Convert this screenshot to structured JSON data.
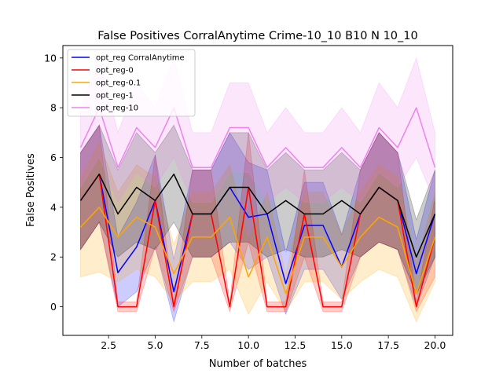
{
  "chart_data": {
    "type": "line",
    "title": "False Positives CorralAnytime Crime-10_10 B10 N 10_10",
    "xlabel": "Number of batches",
    "ylabel": "False Positives",
    "xlim": [
      0.05,
      20.95
    ],
    "ylim": [
      -1.15,
      10.5
    ],
    "xticks": [
      2.5,
      5.0,
      7.5,
      10.0,
      12.5,
      15.0,
      17.5,
      20.0
    ],
    "xtick_labels": [
      "2.5",
      "5.0",
      "7.5",
      "10.0",
      "12.5",
      "15.0",
      "17.5",
      "20.0"
    ],
    "yticks": [
      0,
      2,
      4,
      6,
      8,
      10
    ],
    "ytick_labels": [
      "0",
      "2",
      "4",
      "6",
      "8",
      "10"
    ],
    "grid": false,
    "legend_position": "top-left",
    "x": [
      1,
      2,
      3,
      4,
      5,
      6,
      7,
      8,
      9,
      10,
      11,
      12,
      13,
      14,
      15,
      16,
      17,
      18,
      19,
      20
    ],
    "series": [
      {
        "name": "opt_reg CorralAnytime",
        "color": "#0000ff",
        "mean": [
          4.27,
          5.33,
          1.37,
          2.4,
          4.27,
          0.6,
          3.73,
          3.73,
          4.8,
          3.6,
          3.73,
          0.93,
          3.27,
          3.27,
          1.6,
          3.73,
          4.8,
          4.27,
          1.33,
          3.73
        ],
        "lower": [
          2.3,
          3.4,
          0.0,
          0.6,
          2.4,
          -0.6,
          2.0,
          2.0,
          2.6,
          1.5,
          2.0,
          -0.3,
          1.5,
          1.5,
          0.3,
          2.0,
          2.6,
          2.3,
          0.0,
          2.0
        ],
        "upper": [
          6.2,
          7.3,
          2.8,
          4.2,
          6.1,
          1.9,
          5.5,
          5.5,
          7.0,
          5.8,
          5.5,
          2.2,
          5.0,
          5.0,
          2.9,
          5.5,
          7.0,
          6.2,
          2.7,
          5.5
        ]
      },
      {
        "name": "opt_reg-0",
        "color": "#ff0000",
        "mean": [
          4.27,
          5.33,
          0.0,
          0.0,
          4.27,
          0.0,
          3.73,
          3.73,
          0.0,
          4.8,
          0.0,
          0.0,
          3.73,
          0.0,
          0.0,
          3.73,
          4.8,
          4.27,
          0.0,
          2.8
        ],
        "lower": [
          2.3,
          3.4,
          -0.2,
          -0.2,
          2.4,
          -0.2,
          2.0,
          2.0,
          -0.2,
          2.6,
          -0.2,
          -0.2,
          2.0,
          -0.2,
          -0.2,
          2.0,
          2.6,
          2.3,
          -0.2,
          1.2
        ],
        "upper": [
          6.2,
          7.3,
          0.2,
          0.2,
          6.1,
          0.2,
          5.5,
          5.5,
          0.2,
          7.0,
          0.2,
          0.2,
          5.5,
          0.2,
          0.2,
          5.5,
          7.0,
          6.2,
          0.2,
          4.4
        ]
      },
      {
        "name": "opt_reg-0.1",
        "color": "#ffa500",
        "mean": [
          3.2,
          4.0,
          2.8,
          3.6,
          3.2,
          1.33,
          2.8,
          2.8,
          3.6,
          1.2,
          2.8,
          0.53,
          2.8,
          2.8,
          1.6,
          2.8,
          3.6,
          3.2,
          0.53,
          2.8
        ],
        "lower": [
          1.2,
          1.4,
          1.0,
          1.5,
          1.2,
          0.2,
          1.0,
          1.0,
          1.5,
          -0.3,
          1.0,
          -0.2,
          1.0,
          1.0,
          0.3,
          1.0,
          1.5,
          1.2,
          -0.6,
          1.0
        ],
        "upper": [
          5.2,
          6.6,
          4.6,
          5.7,
          5.2,
          2.5,
          4.6,
          4.6,
          5.7,
          2.7,
          4.6,
          1.3,
          4.6,
          4.6,
          2.9,
          4.6,
          5.7,
          5.2,
          1.7,
          4.6
        ]
      },
      {
        "name": "opt_reg-1",
        "color": "#000000",
        "mean": [
          4.27,
          5.33,
          3.73,
          4.8,
          4.27,
          5.33,
          3.73,
          3.73,
          4.8,
          4.8,
          3.73,
          4.27,
          3.73,
          3.73,
          4.27,
          3.73,
          4.8,
          4.27,
          2.0,
          3.73
        ],
        "lower": [
          2.3,
          3.4,
          2.0,
          2.6,
          2.3,
          3.4,
          2.0,
          2.0,
          2.6,
          2.6,
          2.0,
          2.3,
          2.0,
          2.0,
          2.3,
          2.0,
          2.6,
          2.3,
          0.5,
          2.0
        ],
        "upper": [
          6.2,
          7.3,
          5.5,
          7.0,
          6.2,
          7.3,
          5.5,
          5.5,
          7.0,
          7.0,
          5.5,
          6.2,
          5.5,
          5.5,
          6.2,
          5.5,
          7.0,
          6.2,
          3.5,
          5.5
        ]
      },
      {
        "name": "opt_reg-10",
        "color": "#ee82ee",
        "mean": [
          6.4,
          8.0,
          5.6,
          7.2,
          6.4,
          8.0,
          5.6,
          5.6,
          7.2,
          7.2,
          5.6,
          6.4,
          5.6,
          5.6,
          6.4,
          5.6,
          7.2,
          6.4,
          8.0,
          5.6
        ],
        "lower": [
          4.8,
          6.0,
          4.2,
          5.4,
          4.8,
          6.0,
          4.2,
          4.2,
          5.4,
          5.4,
          4.2,
          4.8,
          4.2,
          4.2,
          4.8,
          4.2,
          5.4,
          4.8,
          6.0,
          4.2
        ],
        "upper": [
          8.0,
          10.0,
          7.0,
          9.0,
          8.0,
          10.0,
          7.0,
          7.0,
          9.0,
          9.0,
          7.0,
          8.0,
          7.0,
          7.0,
          8.0,
          7.0,
          9.0,
          8.0,
          10.0,
          7.0
        ]
      }
    ]
  }
}
